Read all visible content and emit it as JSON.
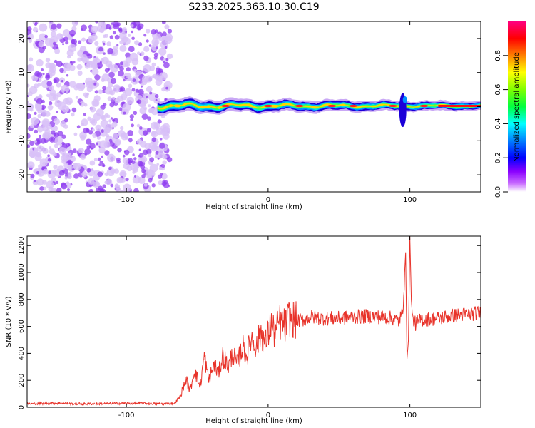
{
  "title": "S233.2025.363.10.30.C19",
  "colors": {
    "snr_line": "#e8332a",
    "frame": "#000000",
    "speckle": "#8f3cf0",
    "speckle_light": "#d8c0f7"
  },
  "chart_data": [
    {
      "type": "heatmap",
      "name": "spectrogram",
      "xlabel": "Height of straight line (km)",
      "ylabel": "Frequency (Hz)",
      "xlim": [
        -170,
        150
      ],
      "ylim": [
        -25,
        25
      ],
      "x_ticks": [
        -100,
        0,
        100
      ],
      "y_ticks": [
        -20,
        -10,
        0,
        10,
        20
      ],
      "noise_region_x": [
        -170,
        -69
      ],
      "signal_start_x": -78,
      "signal_frequency": 0,
      "secondary_feature": {
        "x": 95,
        "freq_range": [
          -6,
          4
        ]
      },
      "colorbar": {
        "label": "Normalized spectral amplitude",
        "range": [
          0.0,
          1.0
        ],
        "ticks": [
          0.0,
          0.2,
          0.4,
          0.6,
          0.8
        ],
        "tick_labels": [
          "0.0",
          "0.2",
          "0.4",
          "0.6",
          "0.8"
        ],
        "colormap": "rainbow"
      }
    },
    {
      "type": "line",
      "name": "snr",
      "xlabel": "Height of straight line (km)",
      "ylabel": "SNR (10 * v/v)",
      "xlim": [
        -170,
        150
      ],
      "ylim": [
        0,
        1270
      ],
      "x_ticks": [
        -100,
        0,
        100
      ],
      "y_ticks": [
        0,
        200,
        400,
        600,
        800,
        1000,
        1200
      ],
      "series": [
        {
          "name": "SNR",
          "x": [
            -170,
            -150,
            -130,
            -110,
            -90,
            -75,
            -66,
            -62,
            -58,
            -55,
            -52,
            -48,
            -45,
            -42,
            -38,
            -35,
            -32,
            -28,
            -25,
            -22,
            -18,
            -15,
            -12,
            -8,
            -5,
            -2,
            2,
            5,
            8,
            12,
            15,
            20,
            25,
            30,
            40,
            50,
            60,
            70,
            80,
            88,
            92,
            95,
            97,
            98,
            99,
            100,
            101,
            102,
            104,
            108,
            120,
            130,
            140,
            150
          ],
          "y": [
            25,
            30,
            25,
            28,
            30,
            25,
            30,
            80,
            210,
            120,
            280,
            150,
            380,
            200,
            320,
            250,
            380,
            300,
            400,
            320,
            450,
            380,
            520,
            450,
            570,
            470,
            620,
            540,
            640,
            600,
            670,
            640,
            650,
            670,
            660,
            660,
            670,
            675,
            670,
            660,
            640,
            700,
            1150,
            360,
            500,
            1270,
            800,
            650,
            620,
            650,
            660,
            680,
            690,
            700
          ]
        }
      ]
    }
  ]
}
